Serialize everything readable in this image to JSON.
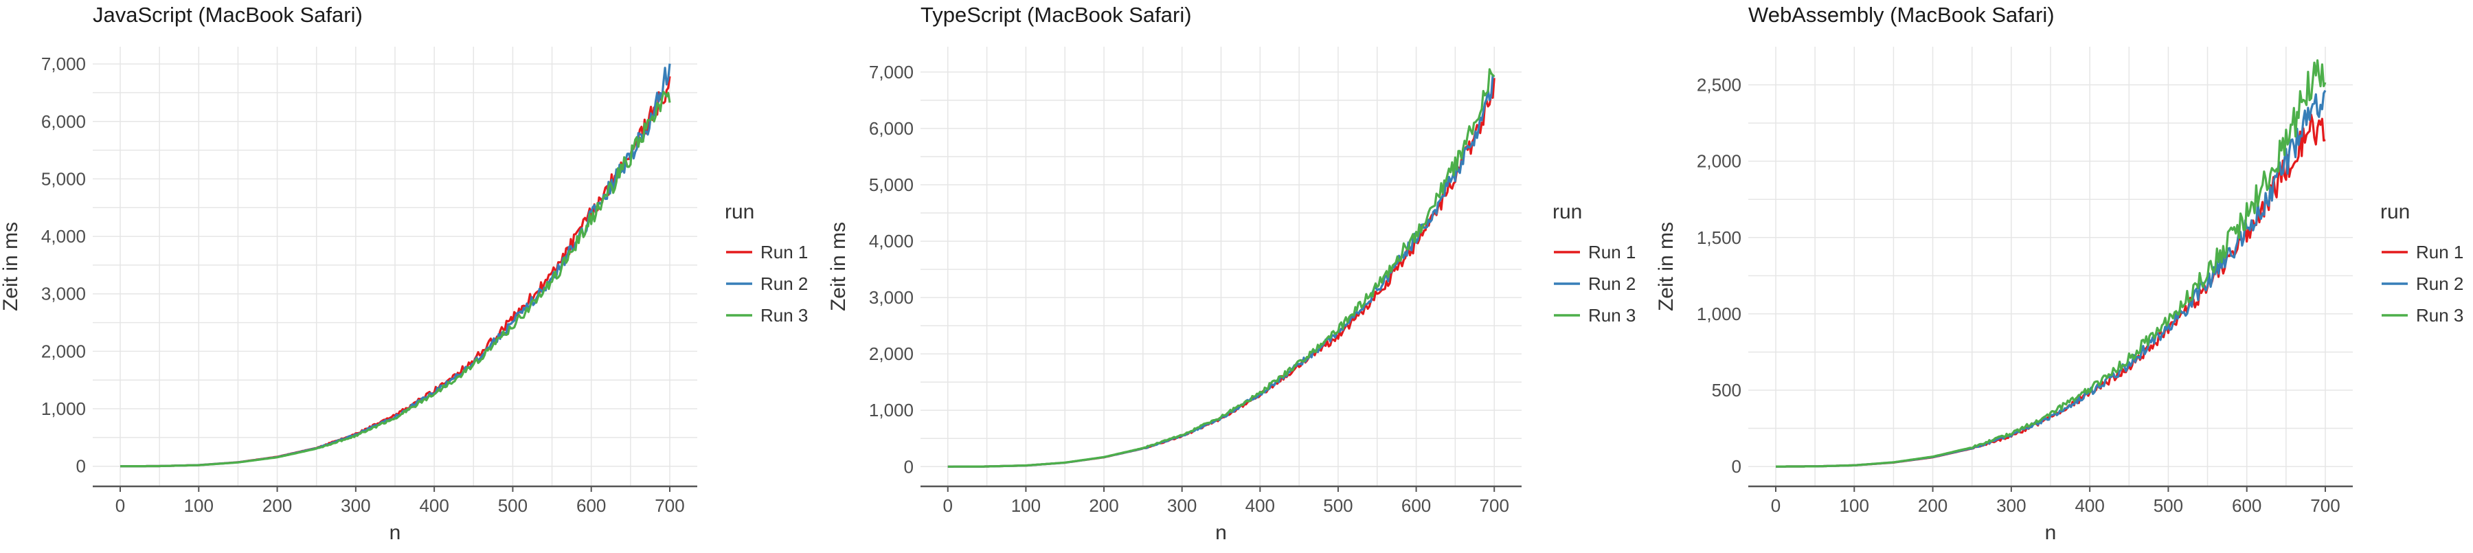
{
  "colors": {
    "Run 1": "#E41A1C",
    "Run 2": "#377EB8",
    "Run 3": "#4DAF4A"
  },
  "chart_data": [
    {
      "type": "line",
      "title": "JavaScript (MacBook Safari)",
      "xlabel": "n",
      "ylabel": "Zeit in ms",
      "xlim": [
        -35,
        735
      ],
      "ylim": [
        -350,
        7300
      ],
      "xticks": [
        0,
        100,
        200,
        300,
        400,
        500,
        600,
        700
      ],
      "xtick_labels": [
        "0",
        "100",
        "200",
        "300",
        "400",
        "500",
        "600",
        "700"
      ],
      "yticks": [
        0,
        1000,
        2000,
        3000,
        4000,
        5000,
        6000,
        7000
      ],
      "ytick_labels": [
        "0",
        "1,000",
        "2,000",
        "3,000",
        "4,000",
        "5,000",
        "6,000",
        "7,000"
      ],
      "grid": true,
      "legend": {
        "title": "run",
        "position": "right"
      },
      "series": [
        {
          "name": "Run 1",
          "x": [
            0,
            50,
            100,
            150,
            200,
            250,
            300,
            350,
            400,
            450,
            500,
            550,
            600,
            620,
            640,
            660,
            680,
            700
          ],
          "y": [
            0,
            3,
            20,
            70,
            165,
            320,
            560,
            880,
            1320,
            1840,
            2580,
            3330,
            4400,
            4820,
            5250,
            5700,
            6200,
            6600
          ]
        },
        {
          "name": "Run 2",
          "x": [
            0,
            50,
            100,
            150,
            200,
            250,
            300,
            350,
            400,
            450,
            500,
            550,
            600,
            620,
            640,
            660,
            680,
            700
          ],
          "y": [
            0,
            3,
            20,
            68,
            160,
            315,
            545,
            860,
            1290,
            1800,
            2500,
            3250,
            4350,
            4780,
            5220,
            5650,
            6150,
            7000
          ]
        },
        {
          "name": "Run 3",
          "x": [
            0,
            50,
            100,
            150,
            200,
            250,
            300,
            350,
            400,
            450,
            500,
            550,
            600,
            620,
            640,
            660,
            680,
            700
          ],
          "y": [
            0,
            3,
            19,
            66,
            155,
            305,
            530,
            840,
            1260,
            1760,
            2450,
            3200,
            4300,
            4720,
            5180,
            5620,
            6100,
            6500
          ]
        }
      ]
    },
    {
      "type": "line",
      "title": "TypeScript (MacBook Safari)",
      "xlabel": "n",
      "ylabel": "Zeit in ms",
      "xlim": [
        -35,
        735
      ],
      "ylim": [
        -350,
        7450
      ],
      "xticks": [
        0,
        100,
        200,
        300,
        400,
        500,
        600,
        700
      ],
      "xtick_labels": [
        "0",
        "100",
        "200",
        "300",
        "400",
        "500",
        "600",
        "700"
      ],
      "yticks": [
        0,
        1000,
        2000,
        3000,
        4000,
        5000,
        6000,
        7000
      ],
      "ytick_labels": [
        "0",
        "1,000",
        "2,000",
        "3,000",
        "4,000",
        "5,000",
        "6,000",
        "7,000"
      ],
      "grid": true,
      "legend": {
        "title": "run",
        "position": "right"
      },
      "series": [
        {
          "name": "Run 1",
          "x": [
            0,
            50,
            100,
            150,
            200,
            250,
            300,
            350,
            400,
            450,
            500,
            550,
            600,
            620,
            640,
            660,
            680,
            700
          ],
          "y": [
            0,
            3,
            20,
            70,
            165,
            320,
            540,
            850,
            1270,
            1790,
            2320,
            3050,
            3950,
            4400,
            4880,
            5400,
            6000,
            6700
          ]
        },
        {
          "name": "Run 2",
          "x": [
            0,
            50,
            100,
            150,
            200,
            250,
            300,
            350,
            400,
            450,
            500,
            550,
            600,
            620,
            640,
            660,
            680,
            700
          ],
          "y": [
            0,
            3,
            20,
            70,
            168,
            322,
            545,
            860,
            1290,
            1810,
            2380,
            3130,
            4050,
            4480,
            4950,
            5450,
            6050,
            6900
          ]
        },
        {
          "name": "Run 3",
          "x": [
            0,
            50,
            100,
            150,
            200,
            250,
            300,
            350,
            400,
            450,
            500,
            550,
            600,
            620,
            640,
            660,
            680,
            700
          ],
          "y": [
            0,
            3,
            21,
            72,
            170,
            330,
            560,
            880,
            1310,
            1850,
            2430,
            3200,
            4150,
            4600,
            5100,
            5600,
            6300,
            7100
          ]
        }
      ]
    },
    {
      "type": "line",
      "title": "WebAssembly (MacBook Safari)",
      "xlabel": "n",
      "ylabel": "Zeit in ms",
      "xlim": [
        -35,
        735
      ],
      "ylim": [
        -130,
        2750
      ],
      "xticks": [
        0,
        100,
        200,
        300,
        400,
        500,
        600,
        700
      ],
      "xtick_labels": [
        "0",
        "100",
        "200",
        "300",
        "400",
        "500",
        "600",
        "700"
      ],
      "yticks": [
        0,
        500,
        1000,
        1500,
        2000,
        2500
      ],
      "ytick_labels": [
        "0",
        "500",
        "1,000",
        "1,500",
        "2,000",
        "2,500"
      ],
      "grid": true,
      "legend": {
        "title": "run",
        "position": "right"
      },
      "series": [
        {
          "name": "Run 1",
          "x": [
            0,
            50,
            100,
            150,
            200,
            250,
            300,
            350,
            400,
            450,
            500,
            550,
            600,
            620,
            640,
            660,
            680,
            700
          ],
          "y": [
            0,
            1,
            8,
            26,
            60,
            118,
            200,
            320,
            475,
            660,
            900,
            1180,
            1520,
            1680,
            1860,
            2050,
            2200,
            2250
          ]
        },
        {
          "name": "Run 2",
          "x": [
            0,
            50,
            100,
            150,
            200,
            250,
            300,
            350,
            400,
            450,
            500,
            550,
            600,
            620,
            640,
            660,
            680,
            700
          ],
          "y": [
            0,
            1,
            8,
            27,
            62,
            120,
            205,
            325,
            485,
            670,
            910,
            1200,
            1550,
            1710,
            1890,
            2090,
            2320,
            2450
          ]
        },
        {
          "name": "Run 3",
          "x": [
            0,
            50,
            100,
            150,
            200,
            250,
            300,
            350,
            400,
            450,
            500,
            550,
            600,
            620,
            640,
            660,
            680,
            700
          ],
          "y": [
            0,
            1,
            8,
            28,
            65,
            125,
            215,
            345,
            510,
            710,
            960,
            1270,
            1650,
            1830,
            2030,
            2250,
            2500,
            2620
          ]
        }
      ]
    }
  ]
}
